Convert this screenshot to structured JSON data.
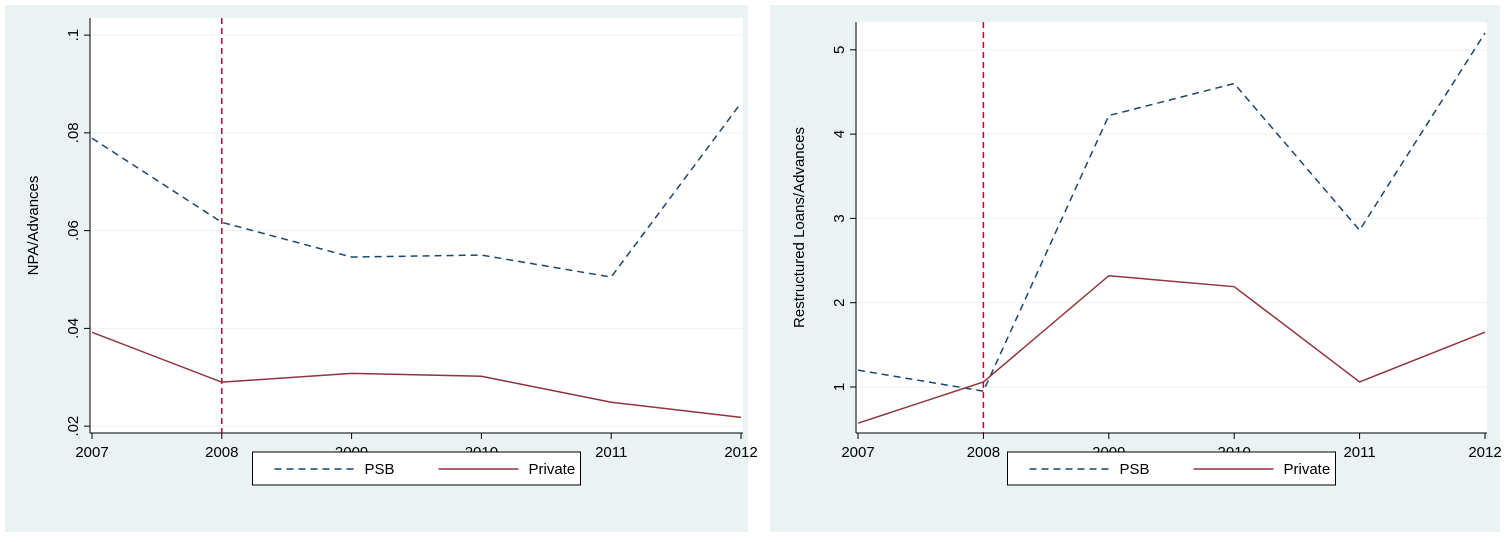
{
  "chart_data": [
    {
      "type": "line",
      "y_label": "NPA/Advances",
      "x": [
        2007,
        2008,
        2009,
        2010,
        2011,
        2012
      ],
      "xlim": [
        2007,
        2012
      ],
      "xticks": [
        2007,
        2008,
        2009,
        2010,
        2011,
        2012
      ],
      "ylim": [
        0.0186,
        0.1035
      ],
      "yticks": [
        {
          "value": 0.02,
          "label": ".02"
        },
        {
          "value": 0.04,
          "label": ".04"
        },
        {
          "value": 0.06,
          "label": ".06"
        },
        {
          "value": 0.08,
          "label": ".08"
        },
        {
          "value": 0.1,
          "label": ".1"
        }
      ],
      "grid": true,
      "legend": "bottom",
      "vline": 2008,
      "vline_color": "#c10534",
      "series": [
        {
          "name": "PSB",
          "color": "#1a476f",
          "dash": true,
          "values": [
            0.0789,
            0.0617,
            0.0546,
            0.055,
            0.0505,
            0.0861
          ]
        },
        {
          "name": "Private",
          "color": "#90353b",
          "dash": false,
          "values": [
            0.0392,
            0.029,
            0.0308,
            0.0302,
            0.0249,
            0.0218
          ]
        }
      ]
    },
    {
      "type": "line",
      "y_label": "Restructured Loans/Advances",
      "x": [
        2007,
        2008,
        2009,
        2010,
        2011,
        2012
      ],
      "xlim": [
        2007,
        2012
      ],
      "xticks": [
        2007,
        2008,
        2009,
        2010,
        2011,
        2012
      ],
      "ylim": [
        0.454,
        5.33
      ],
      "yticks": [
        1,
        2,
        3,
        4,
        5
      ],
      "grid": true,
      "legend": "bottom",
      "vline": 2008,
      "vline_color": "#c10534",
      "series": [
        {
          "name": "PSB",
          "color": "#1a476f",
          "dash": true,
          "values": [
            1.2,
            0.95,
            4.22,
            4.6,
            2.86,
            5.2
          ]
        },
        {
          "name": "Private",
          "color": "#90353b",
          "dash": false,
          "values": [
            0.57,
            1.06,
            2.32,
            2.19,
            1.06,
            1.65
          ]
        }
      ]
    }
  ]
}
